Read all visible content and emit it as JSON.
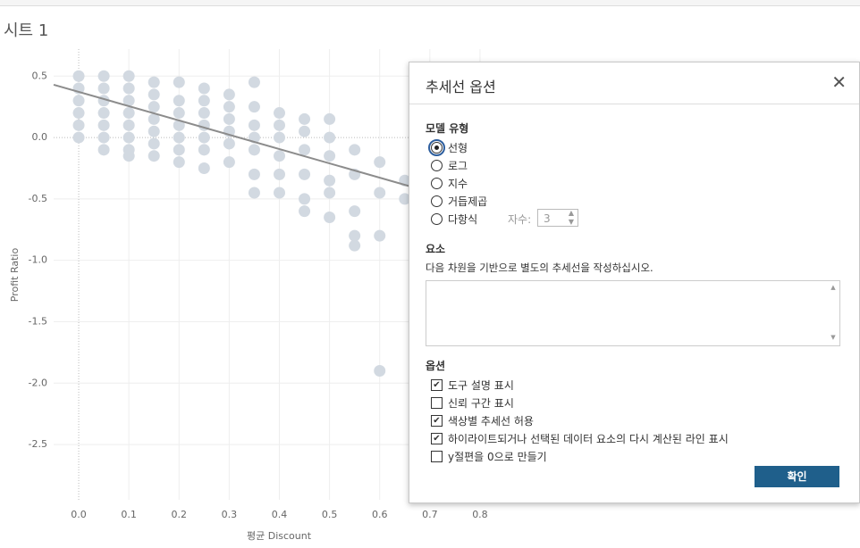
{
  "sheet_title": "시트 1",
  "chart_data": {
    "type": "scatter",
    "x_label": "평균 Discount",
    "y_label": "Profit Ratio",
    "color": "#d2d9e1",
    "x": [
      0,
      0,
      0,
      0,
      0,
      0,
      0.05,
      0.05,
      0.05,
      0.05,
      0.05,
      0.05,
      0.05,
      0.1,
      0.1,
      0.1,
      0.1,
      0.1,
      0.1,
      0.1,
      0.1,
      0.15,
      0.15,
      0.15,
      0.15,
      0.15,
      0.15,
      0.15,
      0.2,
      0.2,
      0.2,
      0.2,
      0.2,
      0.2,
      0.2,
      0.25,
      0.25,
      0.25,
      0.25,
      0.25,
      0.25,
      0.25,
      0.3,
      0.3,
      0.3,
      0.3,
      0.3,
      0.3,
      0.35,
      0.35,
      0.35,
      0.35,
      0.35,
      0.35,
      0.35,
      0.4,
      0.4,
      0.4,
      0.4,
      0.4,
      0.4,
      0.45,
      0.45,
      0.45,
      0.45,
      0.45,
      0.45,
      0.5,
      0.5,
      0.5,
      0.5,
      0.5,
      0.5,
      0.55,
      0.55,
      0.55,
      0.55,
      0.55,
      0.6,
      0.6,
      0.6,
      0.6,
      0.65,
      0.65
    ],
    "y": [
      0.5,
      0.4,
      0.3,
      0.2,
      0.1,
      0,
      0.5,
      0.4,
      0.3,
      0.2,
      0.1,
      0,
      -0.1,
      0.5,
      0.4,
      0.3,
      0.2,
      0.1,
      0,
      -0.1,
      -0.15,
      0.45,
      0.35,
      0.25,
      0.15,
      0.05,
      -0.05,
      -0.15,
      0.45,
      0.3,
      0.2,
      0.1,
      0,
      -0.1,
      -0.2,
      0.4,
      0.3,
      0.2,
      0.1,
      0,
      -0.1,
      -0.25,
      0.35,
      0.25,
      0.15,
      0.05,
      -0.05,
      -0.2,
      0.45,
      0.25,
      0.1,
      0,
      -0.1,
      -0.3,
      -0.45,
      0.2,
      0.1,
      0,
      -0.15,
      -0.3,
      -0.45,
      0.15,
      0.05,
      -0.1,
      -0.3,
      -0.5,
      -0.6,
      0.15,
      0,
      -0.15,
      -0.35,
      -0.45,
      -0.65,
      -0.1,
      -0.3,
      -0.6,
      -0.8,
      -0.88,
      -0.2,
      -0.45,
      -0.8,
      -1.9,
      -0.35,
      -0.5
    ],
    "trend_line": {
      "color": "#8c8c8c",
      "x": [
        -0.05,
        0.8
      ],
      "y": [
        0.43,
        -0.56
      ]
    },
    "xlim": [
      -0.05,
      0.85
    ],
    "xticks": [
      {
        "value": 0,
        "label": "0.0"
      },
      0.1,
      0.2,
      0.3,
      0.4,
      0.5,
      0.6,
      0.7,
      0.8
    ],
    "ylim": [
      -2.95,
      0.72
    ],
    "yticks": [
      0.5,
      {
        "value": 0,
        "label": "0.0"
      },
      -0.5,
      {
        "value": -1,
        "label": "-1.0"
      },
      -1.5,
      {
        "value": -2,
        "label": "-2.0"
      },
      -2.5
    ],
    "grid": true
  },
  "dialog": {
    "title": "추세선 옵션",
    "model_section": "모델 유형",
    "model_options": [
      "선형",
      "로그",
      "지수",
      "거듭제곱",
      "다항식"
    ],
    "selected_model": 0,
    "degree_label": "자수:",
    "degree_value": 3,
    "factors_section": "요소",
    "factors_description": "다음 차원을 기반으로 별도의 추세선을 작성하십시오.",
    "options_section": "옵션",
    "options": [
      {
        "label": "도구 설명 표시",
        "checked": true
      },
      {
        "label": "신뢰 구간 표시",
        "checked": false
      },
      {
        "label": "색상별 추세선 허용",
        "checked": true
      },
      {
        "label": "하이라이트되거나 선택된 데이터 요소의 다시 계산된 라인 표시",
        "checked": true
      },
      {
        "label": "y절편을 0으로 만들기",
        "checked": false
      }
    ],
    "ok_button": "확인"
  }
}
